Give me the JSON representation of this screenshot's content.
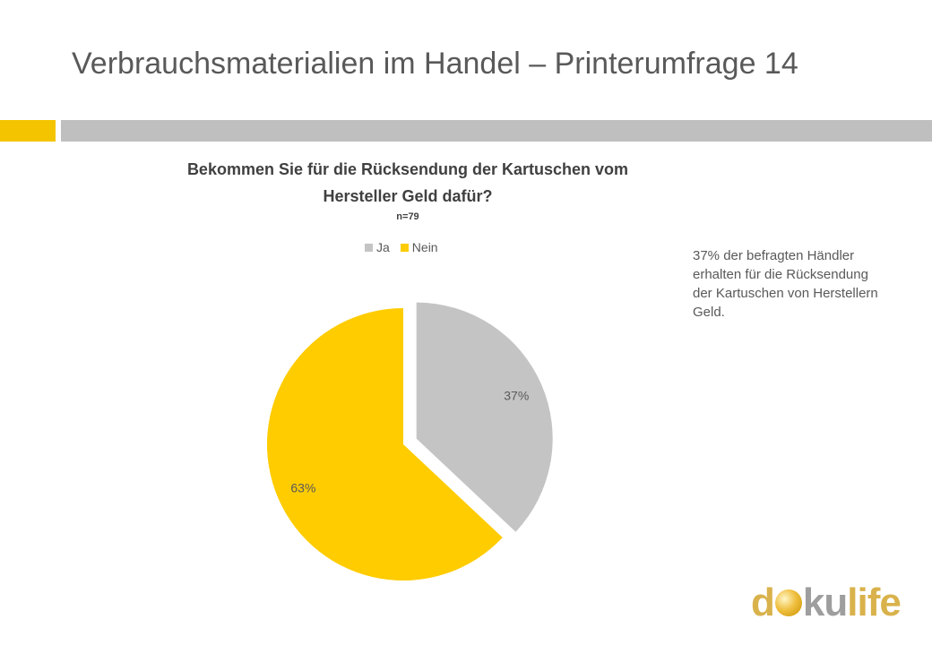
{
  "slide": {
    "title": "Verbrauchsmaterialien im Handel – Printerumfrage 14",
    "note": "37% der befragten Händler erhalten für die Rücksendung der Kartuschen von Herstellern Geld."
  },
  "colors": {
    "accent_yellow": "#F5C400",
    "accent_gray": "#BFBFBF",
    "ja": "#C4C4C4",
    "nein": "#FFCC00",
    "logo_text": "#D9B24C",
    "logo_ku": "#9E9E9E"
  },
  "logo": {
    "part1": "d",
    "part2": "ku",
    "part3": "life"
  },
  "chart_data": {
    "type": "pie",
    "title_line1": "Bekommen Sie für die Rücksendung der Kartuschen vom",
    "title_line2": "Hersteller Geld dafür?",
    "subtitle": "n=79",
    "legend_position": "top",
    "categories": [
      "Ja",
      "Nein"
    ],
    "values": [
      37,
      63
    ],
    "data_labels": [
      "37%",
      "63%"
    ],
    "exploded": [
      "Ja"
    ]
  }
}
